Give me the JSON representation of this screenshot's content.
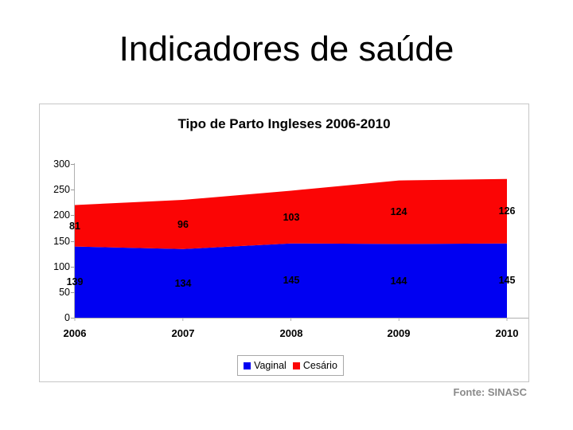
{
  "slide": {
    "title": "Indicadores de saúde",
    "source": "Fonte: SINASC"
  },
  "chart": {
    "title": "Tipo de Parto Ingleses 2006-2010"
  },
  "chart_data": {
    "type": "area",
    "stacked": true,
    "title": "Tipo de Parto Ingleses 2006-2010",
    "categories": [
      "2006",
      "2007",
      "2008",
      "2009",
      "2010"
    ],
    "series": [
      {
        "name": "Vaginal",
        "color": "#0000f2",
        "values": [
          139,
          134,
          145,
          144,
          145
        ]
      },
      {
        "name": "Cesário",
        "color": "#fb0505",
        "values": [
          81,
          96,
          103,
          124,
          126
        ]
      }
    ],
    "xlabel": "",
    "ylabel": "",
    "ylim": [
      0,
      300
    ],
    "yticks": [
      300,
      250,
      200,
      150,
      100,
      50,
      0
    ],
    "grid": false,
    "legend_position": "bottom",
    "data_labels": true,
    "axis_color": "#b0b0b0"
  }
}
